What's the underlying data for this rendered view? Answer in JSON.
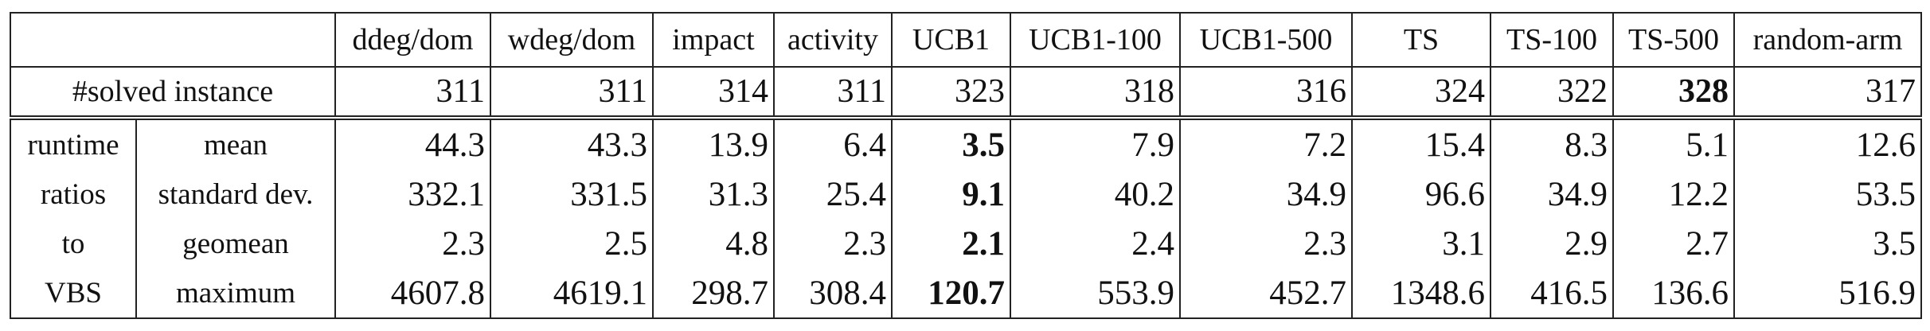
{
  "header": {
    "columns": [
      "ddeg/dom",
      "wdeg/dom",
      "impact",
      "activity",
      "UCB1",
      "UCB1-100",
      "UCB1-500",
      "TS",
      "TS-100",
      "TS-500",
      "random-arm"
    ]
  },
  "table": {
    "solved": {
      "label": "#solved instance",
      "values": [
        "311",
        "311",
        "314",
        "311",
        "323",
        "318",
        "316",
        "324",
        "322",
        "328",
        "317"
      ],
      "bold": [
        9
      ]
    },
    "stats": {
      "group_label": [
        "runtime",
        "ratios",
        "to",
        "VBS"
      ],
      "rows": [
        {
          "label": "mean",
          "values": [
            "44.3",
            "43.3",
            "13.9",
            "6.4",
            "3.5",
            "7.9",
            "7.2",
            "15.4",
            "8.3",
            "5.1",
            "12.6"
          ],
          "bold": [
            4
          ]
        },
        {
          "label": "standard dev.",
          "values": [
            "332.1",
            "331.5",
            "31.3",
            "25.4",
            "9.1",
            "40.2",
            "34.9",
            "96.6",
            "34.9",
            "12.2",
            "53.5"
          ],
          "bold": [
            4
          ]
        },
        {
          "label": "geomean",
          "values": [
            "2.3",
            "2.5",
            "4.8",
            "2.3",
            "2.1",
            "2.4",
            "2.3",
            "3.1",
            "2.9",
            "2.7",
            "3.5"
          ],
          "bold": [
            4
          ]
        },
        {
          "label": "maximum",
          "values": [
            "4607.8",
            "4619.1",
            "298.7",
            "308.4",
            "120.7",
            "553.9",
            "452.7",
            "1348.6",
            "416.5",
            "136.6",
            "516.9"
          ],
          "bold": [
            4
          ]
        }
      ]
    }
  }
}
